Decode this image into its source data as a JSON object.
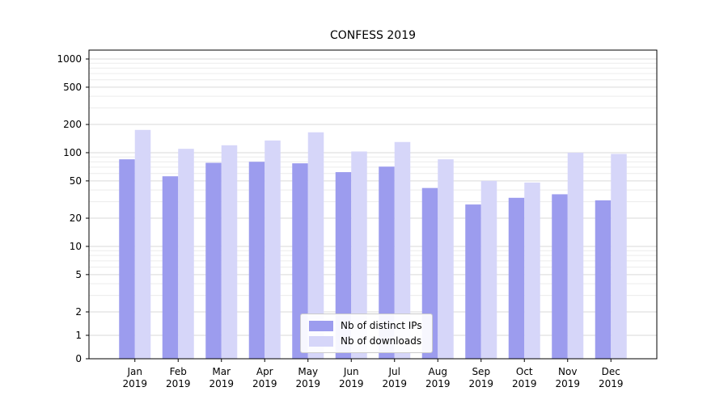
{
  "figure": {
    "title": "CONFESS 2019",
    "background": "#ffffff"
  },
  "legend": {
    "position": "lower center",
    "items": [
      {
        "label": "Nb of distinct IPs",
        "color": "#9c9cee"
      },
      {
        "label": "Nb of downloads",
        "color": "#d6d6f9"
      }
    ]
  },
  "chart_data": {
    "type": "bar",
    "title": "CONFESS 2019",
    "xlabel": "",
    "ylabel": "",
    "yscale": "symlog",
    "ylim": [
      0,
      1000
    ],
    "grid": "both",
    "yticks": [
      0,
      1,
      2,
      5,
      10,
      20,
      50,
      100,
      200,
      500,
      1000
    ],
    "categories": [
      "Jan 2019",
      "Feb 2019",
      "Mar 2019",
      "Apr 2019",
      "May 2019",
      "Jun 2019",
      "Jul 2019",
      "Aug 2019",
      "Sep 2019",
      "Oct 2019",
      "Nov 2019",
      "Dec 2019"
    ],
    "series": [
      {
        "name": "Nb of distinct IPs",
        "color": "#9c9cee",
        "values": [
          85,
          56,
          78,
          80,
          77,
          62,
          71,
          42,
          28,
          33,
          36,
          31
        ]
      },
      {
        "name": "Nb of downloads",
        "color": "#d6d6f9",
        "values": [
          175,
          110,
          120,
          135,
          165,
          103,
          130,
          85,
          50,
          48,
          100,
          97
        ]
      }
    ]
  }
}
